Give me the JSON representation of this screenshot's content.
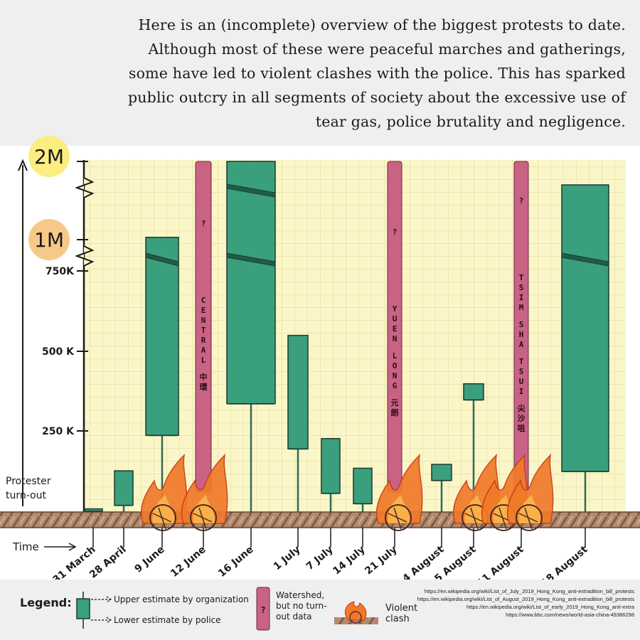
{
  "intro": {
    "line1": "Here is an (incomplete) overview of the biggest protests to date.",
    "line2": "Although most of these were peaceful marches and gatherings,",
    "line3": "some have led to violent clashes with the police. This has sparked",
    "line4": "public outcry in all segments of society about the excessive use of",
    "line5": "tear gas, police brutality and negligence."
  },
  "y_axis": {
    "label_top": "2M",
    "label_mid": "1M",
    "ticks": [
      "750K",
      "500 K",
      "250 K"
    ],
    "name": "Protester turn-out"
  },
  "x_axis": {
    "name": "Time"
  },
  "colors": {
    "bar_fill": "#3a9f7d",
    "bar_stroke": "#1d3a2e",
    "band_fill": "#c86386",
    "plot_bg": "#fbf6c7",
    "grid": "#e2dca8",
    "flame": "#f07a2a",
    "badge_2m": "#fbed80",
    "badge_1m": "#f7c989"
  },
  "chart_data": {
    "type": "bar",
    "title": "",
    "xlabel": "Time",
    "ylabel": "Protester turn-out",
    "y_axis_breaks": "broken scale between 750K and 1M and between 1M and 2M",
    "categories": [
      "31 March",
      "28 April",
      "9 June",
      "12 June",
      "16 June",
      "1 July",
      "7 July",
      "14 July",
      "21 July",
      "4 August",
      "5 August",
      "11 August",
      "18 August"
    ],
    "series": [
      {
        "name": "Upper estimate by organization",
        "values": [
          12000,
          130000,
          1030000,
          null,
          2000000,
          550000,
          230000,
          138000,
          null,
          150000,
          400000,
          null,
          1700000
        ]
      },
      {
        "name": "Lower estimate by police",
        "values": [
          5000,
          22800,
          240000,
          null,
          338000,
          198000,
          60000,
          28000,
          null,
          100000,
          350000,
          null,
          128000
        ]
      }
    ],
    "watershed_dates": [
      {
        "date": "12 June",
        "label": "? CENTRAL 中環"
      },
      {
        "date": "21 July",
        "label": "? YUEN LONG 元朗"
      },
      {
        "date": "11 August",
        "label": "? TSIM SHA TSUI 尖沙咀"
      }
    ],
    "violent_clash_dates": [
      "9 June",
      "12 June",
      "21 July",
      "5 August",
      "11 August"
    ]
  },
  "legend": {
    "title": "Legend:",
    "upper": "Upper estimate by organization",
    "lower": "Lower estimate by police",
    "watershed": "Watershed, but no turn-out data",
    "violent": "Violent clash"
  },
  "sources": [
    "https://en.wikipedia.org/wiki/List_of_July_2019_Hong_Kong_anti-extradition_bill_protests",
    "https://en.wikipedia.org/wiki/List_of_August_2019_Hong_Kong_anti-extradition_bill_protests",
    "https://en.wikipedia.org/wiki/List_of_early_2019_Hong_Kong_anti-extra",
    "https://www.bbc.com/news/world-asia-china-49386298"
  ]
}
